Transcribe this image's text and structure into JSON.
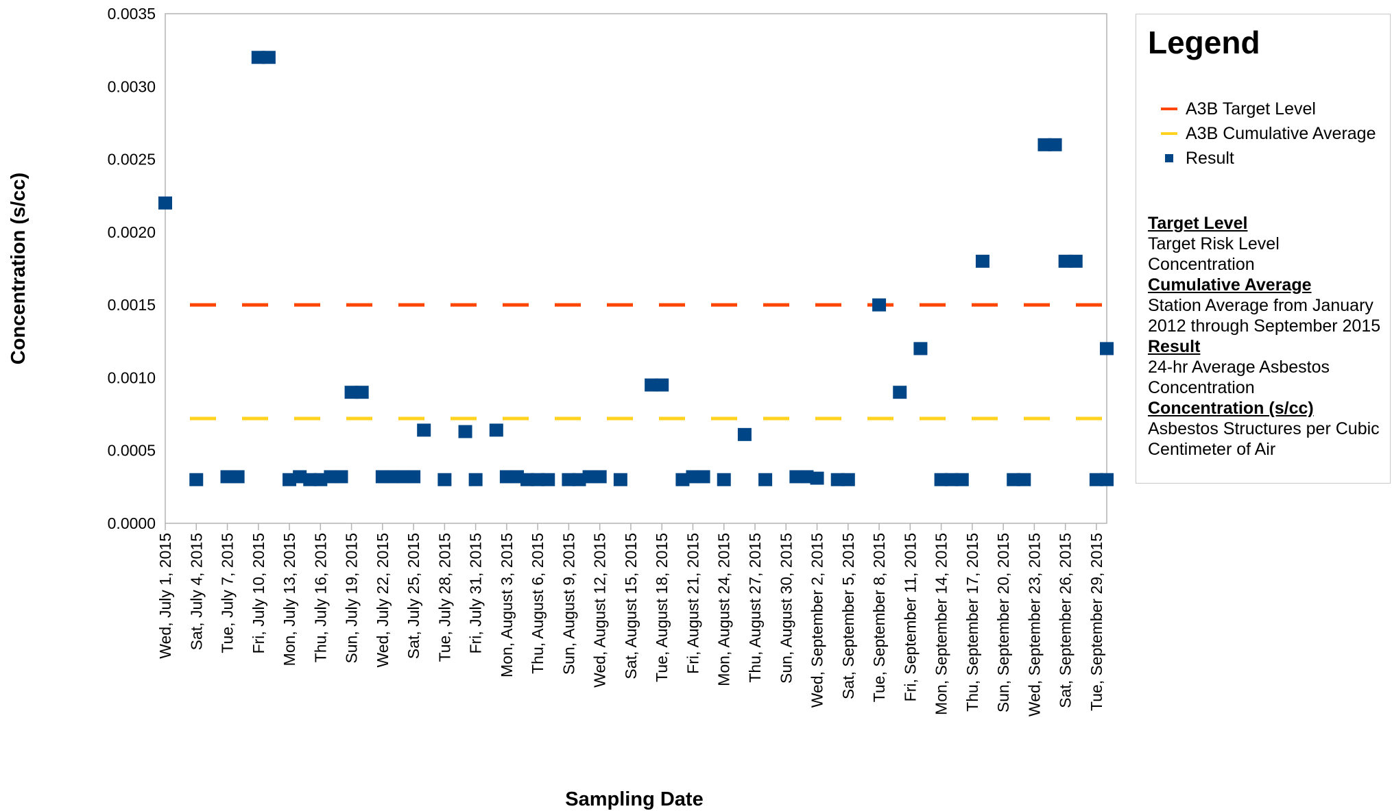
{
  "chart_data": {
    "type": "scatter",
    "xlabel": "Sampling Date",
    "ylabel": "Concentration (s/cc)",
    "ylim": [
      0,
      0.0035
    ],
    "yticks": [
      "0.0000",
      "0.0005",
      "0.0010",
      "0.0015",
      "0.0020",
      "0.0025",
      "0.0030",
      "0.0035"
    ],
    "grid": false,
    "legend_position": "right",
    "x_tick_labels": [
      "Wed, July 1, 2015",
      "Sat, July 4, 2015",
      "Tue, July 7, 2015",
      "Fri, July 10, 2015",
      "Mon, July 13, 2015",
      "Thu, July 16, 2015",
      "Sun, July 19, 2015",
      "Wed, July 22, 2015",
      "Sat, July 25, 2015",
      "Tue, July 28, 2015",
      "Fri, July 31, 2015",
      "Mon, August 3, 2015",
      "Thu, August 6, 2015",
      "Sun, August 9, 2015",
      "Wed, August 12, 2015",
      "Sat, August 15, 2015",
      "Tue, August 18, 2015",
      "Fri, August 21, 2015",
      "Mon, August 24, 2015",
      "Thu, August 27, 2015",
      "Sun, August 30, 2015",
      "Wed, September 2, 2015",
      "Sat, September 5, 2015",
      "Tue, September 8, 2015",
      "Fri, September 11, 2015",
      "Mon, September 14, 2015",
      "Thu, September 17, 2015",
      "Sun, September 20, 2015",
      "Wed, September 23, 2015",
      "Sat, September 26, 2015",
      "Tue, September 29, 2015"
    ],
    "x_start": "2015-07-01",
    "x_end": "2015-09-30",
    "series": [
      {
        "name": "A3B Target Level",
        "kind": "line",
        "style": "dashed",
        "color": "#ff4500",
        "value": 0.0015
      },
      {
        "name": "A3B Cumulative Average",
        "kind": "line",
        "style": "dashed",
        "color": "#ffd320",
        "value": 0.00072
      },
      {
        "name": "Result",
        "kind": "marker",
        "color": "#004586",
        "points": [
          {
            "x": "2015-07-01",
            "y": 0.0022
          },
          {
            "x": "2015-07-04",
            "y": 0.0003
          },
          {
            "x": "2015-07-07",
            "y": 0.00032
          },
          {
            "x": "2015-07-08",
            "y": 0.00032
          },
          {
            "x": "2015-07-10",
            "y": 0.0032
          },
          {
            "x": "2015-07-11",
            "y": 0.0032
          },
          {
            "x": "2015-07-13",
            "y": 0.0003
          },
          {
            "x": "2015-07-14",
            "y": 0.00032
          },
          {
            "x": "2015-07-15",
            "y": 0.0003
          },
          {
            "x": "2015-07-16",
            "y": 0.0003
          },
          {
            "x": "2015-07-17",
            "y": 0.00032
          },
          {
            "x": "2015-07-18",
            "y": 0.00032
          },
          {
            "x": "2015-07-19",
            "y": 0.0009
          },
          {
            "x": "2015-07-20",
            "y": 0.0009
          },
          {
            "x": "2015-07-22",
            "y": 0.00032
          },
          {
            "x": "2015-07-23",
            "y": 0.00032
          },
          {
            "x": "2015-07-24",
            "y": 0.00032
          },
          {
            "x": "2015-07-25",
            "y": 0.00032
          },
          {
            "x": "2015-07-26",
            "y": 0.00064
          },
          {
            "x": "2015-07-28",
            "y": 0.0003
          },
          {
            "x": "2015-07-30",
            "y": 0.00063
          },
          {
            "x": "2015-07-31",
            "y": 0.0003
          },
          {
            "x": "2015-08-02",
            "y": 0.00064
          },
          {
            "x": "2015-08-03",
            "y": 0.00032
          },
          {
            "x": "2015-08-04",
            "y": 0.00032
          },
          {
            "x": "2015-08-05",
            "y": 0.0003
          },
          {
            "x": "2015-08-06",
            "y": 0.0003
          },
          {
            "x": "2015-08-07",
            "y": 0.0003
          },
          {
            "x": "2015-08-09",
            "y": 0.0003
          },
          {
            "x": "2015-08-10",
            "y": 0.0003
          },
          {
            "x": "2015-08-11",
            "y": 0.00032
          },
          {
            "x": "2015-08-12",
            "y": 0.00032
          },
          {
            "x": "2015-08-14",
            "y": 0.0003
          },
          {
            "x": "2015-08-17",
            "y": 0.00095
          },
          {
            "x": "2015-08-18",
            "y": 0.00095
          },
          {
            "x": "2015-08-20",
            "y": 0.0003
          },
          {
            "x": "2015-08-21",
            "y": 0.00032
          },
          {
            "x": "2015-08-22",
            "y": 0.00032
          },
          {
            "x": "2015-08-24",
            "y": 0.0003
          },
          {
            "x": "2015-08-26",
            "y": 0.00061
          },
          {
            "x": "2015-08-28",
            "y": 0.0003
          },
          {
            "x": "2015-08-31",
            "y": 0.00032
          },
          {
            "x": "2015-09-01",
            "y": 0.00032
          },
          {
            "x": "2015-09-02",
            "y": 0.00031
          },
          {
            "x": "2015-09-04",
            "y": 0.0003
          },
          {
            "x": "2015-09-05",
            "y": 0.0003
          },
          {
            "x": "2015-09-08",
            "y": 0.0015
          },
          {
            "x": "2015-09-10",
            "y": 0.0009
          },
          {
            "x": "2015-09-12",
            "y": 0.0012
          },
          {
            "x": "2015-09-14",
            "y": 0.0003
          },
          {
            "x": "2015-09-15",
            "y": 0.0003
          },
          {
            "x": "2015-09-16",
            "y": 0.0003
          },
          {
            "x": "2015-09-18",
            "y": 0.0018
          },
          {
            "x": "2015-09-21",
            "y": 0.0003
          },
          {
            "x": "2015-09-22",
            "y": 0.0003
          },
          {
            "x": "2015-09-24",
            "y": 0.0026
          },
          {
            "x": "2015-09-25",
            "y": 0.0026
          },
          {
            "x": "2015-09-26",
            "y": 0.0018
          },
          {
            "x": "2015-09-27",
            "y": 0.0018
          },
          {
            "x": "2015-09-29",
            "y": 0.0003
          },
          {
            "x": "2015-09-30",
            "y": 0.0003
          },
          {
            "x": "2015-09-30",
            "y": 0.0012
          }
        ]
      }
    ]
  },
  "legend": {
    "title": "Legend",
    "entries": [
      "A3B Target Level",
      "A3B Cumulative Average",
      "Result"
    ],
    "definitions": [
      {
        "heading": "Target Level",
        "text": "Target Risk Level Concentration"
      },
      {
        "heading": "Cumulative Average",
        "text": "Station Average from January 2012 through September 2015"
      },
      {
        "heading": "Result",
        "text": "24-hr  Average Asbestos Concentration"
      },
      {
        "heading": "Concentration (s/cc)",
        "text": "Asbestos Structures per Cubic Centimeter of Air"
      }
    ]
  }
}
